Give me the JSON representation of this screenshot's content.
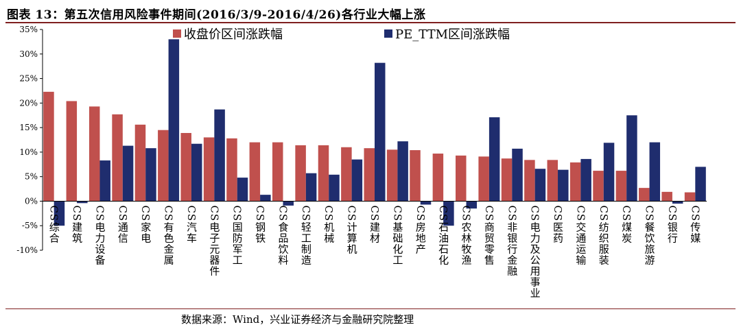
{
  "figure": {
    "title": "图表 13：第五次信用风险事件期间(2016/3/9-2016/4/26)各行业大幅上涨",
    "source": "数据来源：Wind，兴业证券经济与金融研究院整理"
  },
  "chart_data": {
    "type": "bar",
    "title": "",
    "xlabel": "",
    "ylabel": "",
    "ylim": [
      -10,
      35
    ],
    "yticks": [
      -10,
      -5,
      0,
      5,
      10,
      15,
      20,
      25,
      30,
      35
    ],
    "yticklabels": [
      "-10%",
      "-5%",
      "0%",
      "5%",
      "10%",
      "15%",
      "20%",
      "25%",
      "30%",
      "35%"
    ],
    "grid": false,
    "legend_position": "top",
    "categories": [
      "CS综合",
      "CS建筑",
      "CS电力设备",
      "CS通信",
      "CS家电",
      "CS有色金属",
      "CS汽车",
      "CS电子元器件",
      "CS国防军工",
      "CS钢铁",
      "CS食品饮料",
      "CS轻工制造",
      "CS机械",
      "CS计算机",
      "CS建材",
      "CS基础化工",
      "CS房地产",
      "CS石油石化",
      "CS农林牧渔",
      "CS商贸零售",
      "CS非银行金融",
      "CS电力及公用事业",
      "CS医药",
      "CS交通运输",
      "CS纺织服装",
      "CS煤炭",
      "CS餐饮旅游",
      "CS银行",
      "CS传媒"
    ],
    "series": [
      {
        "name": "收盘价区间涨跌幅",
        "color": "#c0504d",
        "values": [
          22.3,
          20.4,
          19.3,
          17.7,
          15.6,
          14.5,
          13.9,
          13.0,
          12.8,
          12.0,
          12.0,
          11.4,
          11.4,
          11.0,
          10.8,
          10.5,
          10.4,
          9.7,
          9.3,
          9.1,
          8.7,
          8.4,
          8.4,
          7.9,
          6.2,
          6.2,
          2.7,
          1.9,
          1.8
        ]
      },
      {
        "name": "PE_TTM区间涨跌幅",
        "color": "#1f2d6e",
        "values": [
          -5.0,
          -0.4,
          8.3,
          11.3,
          10.8,
          33.0,
          11.7,
          18.7,
          4.8,
          1.3,
          -0.9,
          5.7,
          5.4,
          8.5,
          28.2,
          12.2,
          -0.7,
          -5.0,
          -1.5,
          17.1,
          10.7,
          6.6,
          6.4,
          8.6,
          11.9,
          17.5,
          12.0,
          -0.5,
          7.0
        ]
      }
    ]
  }
}
